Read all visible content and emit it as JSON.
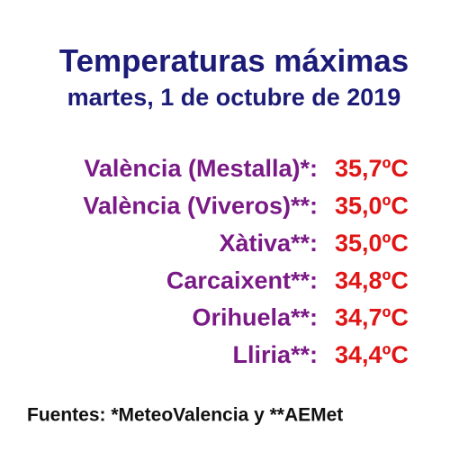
{
  "header": {
    "title": "Temperaturas máximas",
    "subtitle": "martes, 1 de octubre de 2019"
  },
  "table": {
    "rows": [
      [
        "València (Mestalla)*:",
        "35,7ºC"
      ],
      [
        "València (Viveros)**:",
        "35,0ºC"
      ],
      [
        "Xàtiva**:",
        "35,0ºC"
      ],
      [
        "Carcaixent**:",
        "34,8ºC"
      ],
      [
        "Orihuela**:",
        "34,7ºC"
      ],
      [
        "Lliria**:",
        "34,4ºC"
      ]
    ]
  },
  "footer": {
    "sources": "Fuentes: *MeteoValencia y **AEMet"
  }
}
